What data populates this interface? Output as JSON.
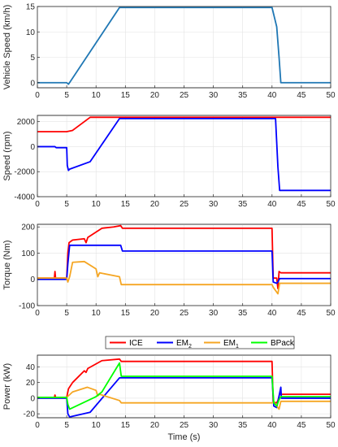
{
  "chart_data": [
    {
      "type": "line",
      "ylabel": "Vehicle Speed (km/h)",
      "xlabel": "",
      "xlim": [
        0,
        50
      ],
      "ylim": [
        -1,
        15
      ],
      "xticks": [
        0,
        5,
        10,
        15,
        20,
        25,
        30,
        35,
        40,
        45,
        50
      ],
      "xtick_labels": [
        "0",
        "5",
        "10",
        "15",
        "20",
        "25",
        "30",
        "35",
        "40",
        "45",
        "50"
      ],
      "yticks": [
        0,
        5,
        10,
        15
      ],
      "ytick_labels": [
        "0",
        "5",
        "10",
        "15"
      ],
      "grid": true,
      "series": [
        {
          "color": "#1f77b4",
          "points": [
            [
              0,
              0
            ],
            [
              5,
              0
            ],
            [
              5.3,
              -0.3
            ],
            [
              5.6,
              0.2
            ],
            [
              14,
              14.8
            ],
            [
              40,
              14.8
            ],
            [
              40.8,
              11
            ],
            [
              41.2,
              5
            ],
            [
              41.5,
              0
            ],
            [
              50,
              0
            ]
          ]
        }
      ]
    },
    {
      "type": "line",
      "ylabel": "Speed (rpm)",
      "xlabel": "",
      "xlim": [
        0,
        50
      ],
      "ylim": [
        -4000,
        2500
      ],
      "xticks": [
        0,
        5,
        10,
        15,
        20,
        25,
        30,
        35,
        40,
        45,
        50
      ],
      "xtick_labels": [
        "0",
        "5",
        "10",
        "15",
        "20",
        "25",
        "30",
        "35",
        "40",
        "45",
        "50"
      ],
      "yticks": [
        -4000,
        -2000,
        0,
        2000
      ],
      "ytick_labels": [
        "-4000",
        "-2000",
        "0",
        "2000"
      ],
      "grid": true,
      "series": [
        {
          "color": "#ff0000",
          "points": [
            [
              0,
              1200
            ],
            [
              5,
              1200
            ],
            [
              6,
              1300
            ],
            [
              9,
              2350
            ],
            [
              50,
              2350
            ]
          ]
        },
        {
          "color": "#0000ff",
          "points": [
            [
              0,
              0
            ],
            [
              3,
              0
            ],
            [
              3.2,
              -80
            ],
            [
              5,
              -80
            ],
            [
              5.1,
              -1500
            ],
            [
              5.3,
              -1900
            ],
            [
              5.5,
              -1800
            ],
            [
              9,
              -1200
            ],
            [
              14,
              2250
            ],
            [
              40.6,
              2250
            ],
            [
              41,
              -1600
            ],
            [
              41.3,
              -3500
            ],
            [
              50,
              -3500
            ]
          ]
        }
      ]
    },
    {
      "type": "line",
      "ylabel": "Torque (Nm)",
      "xlabel": "",
      "xlim": [
        0,
        50
      ],
      "ylim": [
        -100,
        210
      ],
      "xticks": [
        0,
        5,
        10,
        15,
        20,
        25,
        30,
        35,
        40,
        45,
        50
      ],
      "xtick_labels": [
        "0",
        "5",
        "10",
        "15",
        "20",
        "25",
        "30",
        "35",
        "40",
        "45",
        "50"
      ],
      "yticks": [
        -100,
        0,
        100,
        200
      ],
      "ytick_labels": [
        "-100",
        "0",
        "100",
        "200"
      ],
      "grid": true,
      "series": [
        {
          "color": "#ff0000",
          "points": [
            [
              0,
              5
            ],
            [
              2.9,
              5
            ],
            [
              3,
              30
            ],
            [
              3.1,
              5
            ],
            [
              5,
              5
            ],
            [
              5.2,
              100
            ],
            [
              5.4,
              140
            ],
            [
              6,
              150
            ],
            [
              8,
              155
            ],
            [
              8.3,
              140
            ],
            [
              8.6,
              160
            ],
            [
              11,
              195
            ],
            [
              13,
              200
            ],
            [
              14.2,
              205
            ],
            [
              14.5,
              195
            ],
            [
              40,
              195
            ],
            [
              40.2,
              5
            ],
            [
              40.8,
              5
            ],
            [
              41,
              -35
            ],
            [
              41.2,
              30
            ],
            [
              41.5,
              25
            ],
            [
              50,
              25
            ]
          ]
        },
        {
          "color": "#0000ff",
          "points": [
            [
              0,
              0
            ],
            [
              5,
              0
            ],
            [
              5.2,
              60
            ],
            [
              5.5,
              130
            ],
            [
              14.2,
              130
            ],
            [
              14.5,
              108
            ],
            [
              40,
              108
            ],
            [
              40.2,
              -10
            ],
            [
              40.8,
              -15
            ],
            [
              41,
              -10
            ],
            [
              41.3,
              3
            ],
            [
              50,
              3
            ]
          ]
        },
        {
          "color": "#f5a623",
          "points": [
            [
              0,
              5
            ],
            [
              5,
              5
            ],
            [
              5.2,
              -10
            ],
            [
              5.5,
              10
            ],
            [
              6,
              65
            ],
            [
              8,
              68
            ],
            [
              10,
              40
            ],
            [
              10.3,
              10
            ],
            [
              10.6,
              25
            ],
            [
              14,
              10
            ],
            [
              14.3,
              -20
            ],
            [
              40,
              -20
            ],
            [
              40.2,
              -30
            ],
            [
              41,
              -55
            ],
            [
              41.3,
              -15
            ],
            [
              50,
              -15
            ]
          ]
        }
      ]
    },
    {
      "type": "line",
      "ylabel": "Power (kW)",
      "xlabel": "Time (s)",
      "xlim": [
        0,
        50
      ],
      "ylim": [
        -25,
        55
      ],
      "xticks": [
        0,
        5,
        10,
        15,
        20,
        25,
        30,
        35,
        40,
        45,
        50
      ],
      "xtick_labels": [
        "0",
        "5",
        "10",
        "15",
        "20",
        "25",
        "30",
        "35",
        "40",
        "45",
        "50"
      ],
      "yticks": [
        -20,
        0,
        20,
        40
      ],
      "ytick_labels": [
        "-20",
        "0",
        "20",
        "40"
      ],
      "grid": true,
      "legend": {
        "position": "top",
        "entries": [
          {
            "label": "ICE",
            "sub": "",
            "color": "#ff0000"
          },
          {
            "label": "EM",
            "sub": "2",
            "color": "#0000ff"
          },
          {
            "label": "EM",
            "sub": "1",
            "color": "#f5a623"
          },
          {
            "label": "BPack",
            "sub": "",
            "color": "#00ff00"
          }
        ]
      },
      "series": [
        {
          "name": "ICE",
          "color": "#ff0000",
          "points": [
            [
              0,
              1
            ],
            [
              2.9,
              1
            ],
            [
              3,
              4
            ],
            [
              3.1,
              1
            ],
            [
              5,
              1
            ],
            [
              5.3,
              12
            ],
            [
              6,
              20
            ],
            [
              8,
              35
            ],
            [
              8.3,
              33
            ],
            [
              8.6,
              38
            ],
            [
              11,
              48
            ],
            [
              14,
              50
            ],
            [
              14.3,
              47
            ],
            [
              40,
              47
            ],
            [
              40.2,
              -5
            ],
            [
              40.8,
              -6
            ],
            [
              41,
              -3
            ],
            [
              41.3,
              5
            ],
            [
              50,
              5
            ]
          ]
        },
        {
          "name": "EM2",
          "color": "#0000ff",
          "points": [
            [
              0,
              0
            ],
            [
              5,
              0
            ],
            [
              5.2,
              -20
            ],
            [
              5.5,
              -24
            ],
            [
              9,
              -18
            ],
            [
              14,
              26
            ],
            [
              40,
              26
            ],
            [
              40.3,
              -10
            ],
            [
              40.8,
              -12
            ],
            [
              41.5,
              14
            ],
            [
              41.6,
              0
            ],
            [
              50,
              0
            ]
          ]
        },
        {
          "name": "EM1",
          "color": "#f5a623",
          "points": [
            [
              0,
              1
            ],
            [
              5,
              1
            ],
            [
              6,
              8
            ],
            [
              8.5,
              14
            ],
            [
              10,
              10
            ],
            [
              10.3,
              3
            ],
            [
              10.6,
              5
            ],
            [
              14,
              -3
            ],
            [
              14.3,
              -6
            ],
            [
              40,
              -6
            ],
            [
              40.3,
              -5
            ],
            [
              41.2,
              -14
            ],
            [
              41.5,
              -4
            ],
            [
              50,
              -4
            ]
          ]
        },
        {
          "name": "BPack",
          "color": "#00ff00",
          "points": [
            [
              0,
              1
            ],
            [
              5,
              1
            ],
            [
              5.2,
              -8
            ],
            [
              5.5,
              -14
            ],
            [
              10,
              2
            ],
            [
              11,
              8
            ],
            [
              14,
              45
            ],
            [
              14.3,
              28
            ],
            [
              40,
              28
            ],
            [
              40.3,
              -6
            ],
            [
              40.8,
              -10
            ],
            [
              41.2,
              -2
            ],
            [
              41.5,
              2
            ],
            [
              50,
              2
            ]
          ]
        }
      ]
    }
  ]
}
